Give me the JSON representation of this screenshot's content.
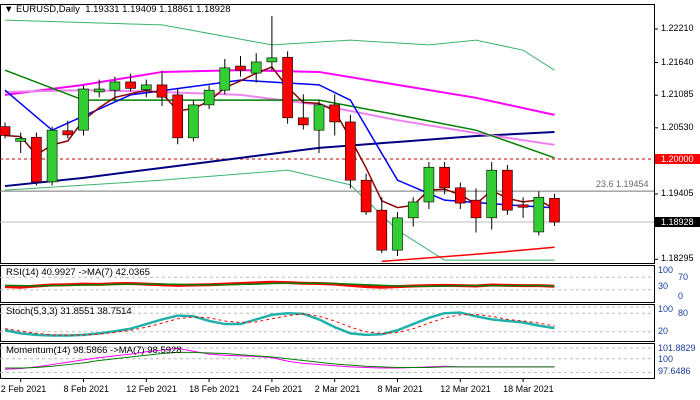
{
  "header": {
    "symbol": "EURUSD,Daily",
    "ohlc": "1.19331 1.19409 1.18861 1.18928"
  },
  "price_axis": {
    "ticks": [
      "1.22210",
      "1.21640",
      "1.21085",
      "1.20530",
      "1.19405",
      "1.18295"
    ],
    "tick_values": [
      1.2221,
      1.2164,
      1.21085,
      1.2053,
      1.19405,
      1.18295
    ],
    "level_label": "1.20000",
    "level_value": 1.2,
    "level_color": "#ff0000",
    "current_label": "1.18928",
    "current_value": 1.18928,
    "fib_label": "23.6 1.19454",
    "fib_value": 1.19454
  },
  "candles": [
    [
      1.2055,
      1.2062,
      1.2035,
      1.204
    ],
    [
      1.203,
      1.2045,
      1.201,
      1.2035
    ],
    [
      1.2037,
      1.2045,
      1.1955,
      1.1961
    ],
    [
      1.1961,
      1.2055,
      1.1955,
      1.2049
    ],
    [
      1.2048,
      1.2065,
      1.2035,
      1.2041
    ],
    [
      1.2049,
      1.2125,
      1.204,
      1.2119
    ],
    [
      1.2114,
      1.2135,
      1.2105,
      1.2119
    ],
    [
      1.2117,
      1.214,
      1.21,
      1.2131
    ],
    [
      1.2131,
      1.2145,
      1.2115,
      1.212
    ],
    [
      1.2118,
      1.2135,
      1.2105,
      1.2126
    ],
    [
      1.2126,
      1.215,
      1.209,
      1.2105
    ],
    [
      1.2109,
      1.212,
      1.2025,
      1.2036
    ],
    [
      1.2036,
      1.21,
      1.203,
      1.2092
    ],
    [
      1.2092,
      1.2125,
      1.2085,
      1.2117
    ],
    [
      1.2117,
      1.217,
      1.211,
      1.2155
    ],
    [
      1.2158,
      1.2175,
      1.214,
      1.2151
    ],
    [
      1.2146,
      1.218,
      1.213,
      1.2165
    ],
    [
      1.2165,
      1.2243,
      1.215,
      1.2172
    ],
    [
      1.2173,
      1.2183,
      1.206,
      1.207
    ],
    [
      1.207,
      1.211,
      1.205,
      1.2058
    ],
    [
      1.2049,
      1.21,
      1.201,
      1.2092
    ],
    [
      1.2092,
      1.211,
      1.204,
      1.2063
    ],
    [
      1.2063,
      1.2075,
      1.195,
      1.1964
    ],
    [
      1.1964,
      1.1975,
      1.1905,
      1.191
    ],
    [
      1.1913,
      1.1935,
      1.184,
      1.1845
    ],
    [
      1.1845,
      1.191,
      1.1835,
      1.19
    ],
    [
      1.19,
      1.1935,
      1.1885,
      1.1927
    ],
    [
      1.1927,
      1.1995,
      1.1915,
      1.1986
    ],
    [
      1.1986,
      1.1995,
      1.194,
      1.1951
    ],
    [
      1.1951,
      1.196,
      1.1915,
      1.1925
    ],
    [
      1.193,
      1.195,
      1.1875,
      1.19
    ],
    [
      1.19,
      1.1995,
      1.188,
      1.1981
    ],
    [
      1.1981,
      1.199,
      1.1905,
      1.1913
    ],
    [
      1.1922,
      1.1935,
      1.19,
      1.1918
    ],
    [
      1.1876,
      1.1945,
      1.187,
      1.1935
    ],
    [
      1.19331,
      1.19409,
      1.18861,
      1.18928
    ]
  ],
  "overlays": [
    {
      "name": "sma-slow",
      "color": "#000080",
      "width": 2,
      "points": [
        [
          0,
          1.1954
        ],
        [
          5,
          1.1968
        ],
        [
          10,
          1.1985
        ],
        [
          15,
          1.2002
        ],
        [
          20,
          1.2019
        ],
        [
          25,
          1.2029
        ],
        [
          30,
          1.2039
        ],
        [
          35,
          1.2046
        ]
      ]
    },
    {
      "name": "sma-magenta",
      "color": "#ff00ff",
      "width": 2,
      "points": [
        [
          0,
          1.2109
        ],
        [
          5,
          1.2126
        ],
        [
          10,
          1.2148
        ],
        [
          15,
          1.2151
        ],
        [
          20,
          1.2148
        ],
        [
          25,
          1.2126
        ],
        [
          30,
          1.2104
        ],
        [
          35,
          1.2075
        ]
      ]
    },
    {
      "name": "sma-pink",
      "color": "#ee82ee",
      "width": 2,
      "points": [
        [
          0,
          1.2114
        ],
        [
          5,
          1.2117
        ],
        [
          10,
          1.2114
        ],
        [
          15,
          1.2109
        ],
        [
          20,
          1.2092
        ],
        [
          25,
          1.2066
        ],
        [
          30,
          1.2044
        ],
        [
          35,
          1.2024
        ]
      ]
    },
    {
      "name": "sma-green",
      "color": "#008000",
      "width": 1.5,
      "points": [
        [
          0,
          1.2151
        ],
        [
          5,
          1.21
        ],
        [
          10,
          1.21
        ],
        [
          15,
          1.21
        ],
        [
          20,
          1.21
        ],
        [
          25,
          1.2075
        ],
        [
          30,
          1.2049
        ],
        [
          35,
          1.2002
        ]
      ]
    },
    {
      "name": "sma-blue-fast",
      "color": "#0000ff",
      "width": 1.5,
      "points": [
        [
          0,
          1.2117
        ],
        [
          3,
          1.2049
        ],
        [
          8,
          1.2109
        ],
        [
          15,
          1.2134
        ],
        [
          20,
          1.2126
        ],
        [
          22,
          1.21
        ],
        [
          25,
          1.1964
        ],
        [
          28,
          1.193
        ],
        [
          32,
          1.1922
        ],
        [
          35,
          1.1917
        ]
      ]
    },
    {
      "name": "bollinger-upper",
      "color": "#3cb371",
      "width": 1,
      "points": [
        [
          0,
          1.2236
        ],
        [
          10,
          1.2228
        ],
        [
          17,
          1.2194
        ],
        [
          22,
          1.2202
        ],
        [
          27,
          1.2194
        ],
        [
          30,
          1.2202
        ],
        [
          33,
          1.2185
        ],
        [
          35,
          1.2151
        ]
      ]
    },
    {
      "name": "bollinger-lower",
      "color": "#3cb371",
      "width": 1,
      "points": [
        [
          0,
          1.1947
        ],
        [
          10,
          1.1964
        ],
        [
          18,
          1.1981
        ],
        [
          22,
          1.1956
        ],
        [
          25,
          1.1879
        ],
        [
          28,
          1.1828
        ],
        [
          35,
          1.1828
        ]
      ]
    },
    {
      "name": "trend-red",
      "color": "#ff0000",
      "width": 1.5,
      "points": [
        [
          24,
          1.1826
        ],
        [
          30,
          1.1838
        ],
        [
          35,
          1.185
        ]
      ]
    }
  ],
  "rsi": {
    "label": "RSI(14) 40.9927  ->MA(7) 42.0365",
    "levels": [
      "100",
      "70",
      "30",
      "0"
    ],
    "rsi": [
      40,
      38,
      42,
      45,
      46,
      48,
      47,
      49,
      50,
      48,
      46,
      44,
      45,
      46,
      48,
      50,
      52,
      54,
      53,
      51,
      50,
      48,
      44,
      40,
      38,
      40,
      42,
      43,
      44,
      43,
      42,
      45,
      44,
      43,
      43,
      41
    ],
    "ma": [
      44,
      43,
      42,
      43,
      44,
      45,
      46,
      47,
      48,
      48,
      48,
      47,
      46,
      46,
      46,
      47,
      48,
      50,
      51,
      51,
      51,
      50,
      48,
      46,
      44,
      42,
      41,
      41,
      42,
      43,
      43,
      43,
      43,
      43,
      43,
      42
    ]
  },
  "stoch": {
    "label": "Stoch(5,3,3) 31.8551 38.7514",
    "levels": [
      "100",
      "80",
      "20"
    ],
    "main": [
      25,
      15,
      10,
      8,
      8,
      10,
      15,
      22,
      30,
      45,
      60,
      72,
      70,
      55,
      45,
      45,
      60,
      75,
      80,
      78,
      60,
      35,
      15,
      10,
      12,
      25,
      45,
      65,
      80,
      82,
      70,
      60,
      55,
      50,
      40,
      32
    ],
    "signal": [
      30,
      22,
      15,
      10,
      9,
      10,
      12,
      18,
      25,
      35,
      48,
      62,
      68,
      65,
      55,
      50,
      52,
      62,
      72,
      78,
      70,
      55,
      35,
      20,
      14,
      18,
      30,
      48,
      65,
      75,
      76,
      70,
      60,
      55,
      48,
      39
    ]
  },
  "momentum": {
    "label": "Momentum(14) 98.5866  ->MA(7) 98.5928",
    "levels": [
      "101.8829",
      "100",
      "97.6486"
    ],
    "mom": [
      98.2,
      98.3,
      98.6,
      99,
      99.4,
      99.8,
      100.2,
      100.5,
      100.8,
      101.2,
      101.5,
      101.8,
      101.3,
      100.8,
      100.6,
      100.5,
      100.4,
      100.2,
      99.6,
      99.2,
      99,
      98.8,
      98.6,
      98.5,
      98.4,
      98.4,
      98.5,
      98.6,
      98.7,
      98.6,
      98.6,
      98.6,
      98.6,
      98.6,
      98.6,
      98.6
    ],
    "ma": [
      98.4,
      98.4,
      98.5,
      98.7,
      99,
      99.3,
      99.7,
      100,
      100.3,
      100.6,
      100.9,
      101.1,
      101.1,
      101,
      100.9,
      100.7,
      100.5,
      100.3,
      100,
      99.7,
      99.4,
      99.1,
      98.9,
      98.7,
      98.6,
      98.5,
      98.5,
      98.5,
      98.6,
      98.6,
      98.6,
      98.6,
      98.6,
      98.6,
      98.6,
      98.6
    ]
  },
  "x_axis": {
    "labels": [
      "2 Feb 2021",
      "8 Feb 2021",
      "12 Feb 2021",
      "18 Feb 2021",
      "24 Feb 2021",
      "2 Mar 2021",
      "8 Mar 2021",
      "12 Mar 2021",
      "18 Mar 2021"
    ],
    "label_candle_index": [
      1,
      5,
      9,
      13,
      17,
      21,
      25,
      29,
      33
    ]
  },
  "colors": {
    "bull": "#32cd32",
    "bear": "#ff0000",
    "border": "#000000"
  }
}
